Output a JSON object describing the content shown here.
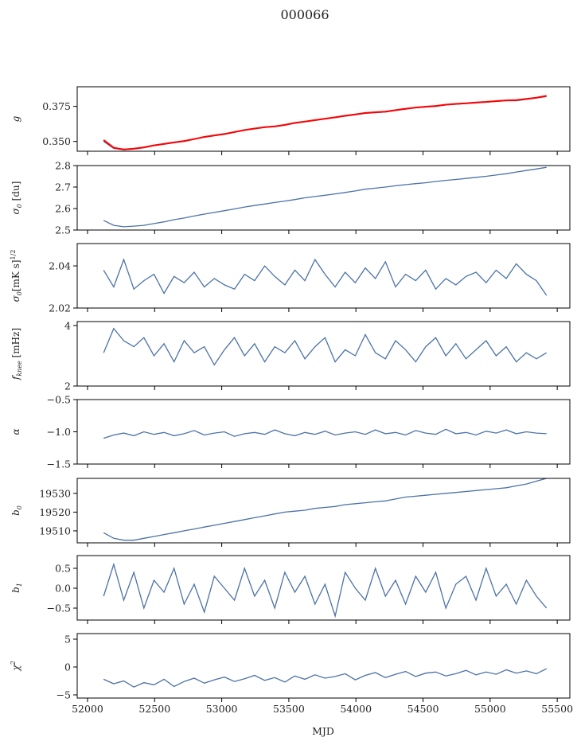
{
  "chart_data": {
    "type": "line",
    "title": "000066",
    "xlabel": "MJD",
    "xlim": [
      51923,
      55594
    ],
    "xticks": [
      52000,
      52500,
      53000,
      53500,
      54000,
      54500,
      55000,
      55500
    ],
    "x": [
      52120,
      52195,
      52270,
      52345,
      52420,
      52495,
      52570,
      52645,
      52720,
      52795,
      52870,
      52945,
      53020,
      53095,
      53170,
      53245,
      53320,
      53395,
      53470,
      53545,
      53620,
      53695,
      53770,
      53845,
      53920,
      53995,
      54070,
      54145,
      54220,
      54295,
      54370,
      54445,
      54520,
      54595,
      54670,
      54745,
      54820,
      54895,
      54970,
      55045,
      55120,
      55195,
      55270,
      55345,
      55420
    ],
    "line_color": "#4c72a6",
    "overlay_color": "#ff0000",
    "panels": [
      {
        "name": "g",
        "ylabel": {
          "main": "g",
          "sub": "",
          "sup": "",
          "rest": ""
        },
        "ylim": [
          0.343,
          0.389
        ],
        "yticks": [
          0.35,
          0.375
        ],
        "ytick_labels": [
          "0.350",
          "0.375"
        ],
        "values": [
          0.35,
          0.345,
          0.344,
          0.3445,
          0.3455,
          0.347,
          0.348,
          0.349,
          0.35,
          0.3515,
          0.353,
          0.354,
          0.355,
          0.3565,
          0.358,
          0.359,
          0.36,
          0.3605,
          0.3615,
          0.363,
          0.364,
          0.365,
          0.366,
          0.367,
          0.368,
          0.369,
          0.37,
          0.3705,
          0.371,
          0.372,
          0.373,
          0.374,
          0.3745,
          0.375,
          0.376,
          0.3765,
          0.377,
          0.3775,
          0.378,
          0.3785,
          0.379,
          0.379,
          0.38,
          0.381,
          0.382
        ],
        "overlay": [
          0.351,
          0.3455,
          0.3443,
          0.3448,
          0.3458,
          0.3472,
          0.3483,
          0.3493,
          0.3503,
          0.3517,
          0.3532,
          0.3543,
          0.3553,
          0.3567,
          0.3581,
          0.3592,
          0.3602,
          0.3608,
          0.3618,
          0.3632,
          0.3642,
          0.3652,
          0.3662,
          0.3672,
          0.3683,
          0.3693,
          0.3703,
          0.3708,
          0.3713,
          0.3723,
          0.3733,
          0.3742,
          0.3748,
          0.3753,
          0.3762,
          0.3768,
          0.3772,
          0.3778,
          0.3782,
          0.3788,
          0.3793,
          0.3795,
          0.3803,
          0.3812,
          0.3825
        ]
      },
      {
        "name": "sigma0-du",
        "ylabel": {
          "main": "σ",
          "sub": "0",
          "sup": "",
          "rest": " [du]"
        },
        "ylim": [
          2.5,
          2.8
        ],
        "yticks": [
          2.5,
          2.6,
          2.7,
          2.8
        ],
        "ytick_labels": [
          "2.5",
          "2.6",
          "2.7",
          "2.8"
        ],
        "values": [
          2.545,
          2.522,
          2.515,
          2.518,
          2.522,
          2.53,
          2.538,
          2.548,
          2.556,
          2.565,
          2.574,
          2.582,
          2.59,
          2.598,
          2.607,
          2.614,
          2.621,
          2.628,
          2.635,
          2.642,
          2.65,
          2.656,
          2.662,
          2.668,
          2.675,
          2.682,
          2.69,
          2.695,
          2.7,
          2.706,
          2.711,
          2.716,
          2.72,
          2.726,
          2.731,
          2.735,
          2.74,
          2.745,
          2.75,
          2.756,
          2.762,
          2.77,
          2.777,
          2.784,
          2.792
        ]
      },
      {
        "name": "sigma0-white",
        "ylabel": {
          "main": "σ",
          "sub": "0",
          "sup": "1/2",
          "rest": "[mK s]"
        },
        "ylim": [
          2.02,
          2.0506
        ],
        "yticks": [
          2.02,
          2.04
        ],
        "ytick_labels": [
          "2.02",
          "2.04"
        ],
        "values": [
          2.038,
          2.03,
          2.043,
          2.029,
          2.033,
          2.036,
          2.027,
          2.035,
          2.032,
          2.037,
          2.03,
          2.034,
          2.031,
          2.029,
          2.036,
          2.033,
          2.04,
          2.035,
          2.031,
          2.038,
          2.033,
          2.043,
          2.036,
          2.03,
          2.037,
          2.032,
          2.039,
          2.034,
          2.042,
          2.03,
          2.036,
          2.033,
          2.038,
          2.029,
          2.034,
          2.031,
          2.035,
          2.037,
          2.032,
          2.038,
          2.034,
          2.041,
          2.036,
          2.033,
          2.026
        ]
      },
      {
        "name": "fknee",
        "ylabel": {
          "main": "f",
          "sub": "knee",
          "sup": "",
          "rest": " [mHz]"
        },
        "ylim": [
          2,
          4.13
        ],
        "yticks": [
          2,
          4
        ],
        "ytick_labels": [
          "2",
          "4"
        ],
        "values": [
          3.1,
          3.9,
          3.5,
          3.3,
          3.6,
          3.0,
          3.4,
          2.8,
          3.5,
          3.1,
          3.3,
          2.7,
          3.2,
          3.6,
          3.0,
          3.4,
          2.8,
          3.3,
          3.1,
          3.5,
          2.9,
          3.3,
          3.6,
          2.8,
          3.2,
          3.0,
          3.7,
          3.1,
          2.9,
          3.5,
          3.2,
          2.8,
          3.3,
          3.6,
          3.0,
          3.4,
          2.9,
          3.2,
          3.5,
          3.0,
          3.3,
          2.8,
          3.1,
          2.9,
          3.1
        ]
      },
      {
        "name": "alpha",
        "ylabel": {
          "main": "α",
          "sub": "",
          "sup": "",
          "rest": ""
        },
        "ylim": [
          -1.5,
          -0.5
        ],
        "yticks": [
          -1.5,
          -1.0,
          -0.5
        ],
        "ytick_labels": [
          "−1.5",
          "−1.0",
          "−0.5"
        ],
        "values": [
          -1.1,
          -1.05,
          -1.02,
          -1.06,
          -1.0,
          -1.04,
          -1.01,
          -1.06,
          -1.03,
          -0.98,
          -1.05,
          -1.02,
          -1.0,
          -1.07,
          -1.03,
          -1.01,
          -1.04,
          -0.97,
          -1.03,
          -1.06,
          -1.01,
          -1.04,
          -0.99,
          -1.05,
          -1.02,
          -1.0,
          -1.04,
          -0.97,
          -1.03,
          -1.01,
          -1.05,
          -0.98,
          -1.02,
          -1.04,
          -0.96,
          -1.03,
          -1.01,
          -1.05,
          -0.99,
          -1.02,
          -0.97,
          -1.03,
          -1.0,
          -1.02,
          -1.03
        ]
      },
      {
        "name": "b0",
        "ylabel": {
          "main": "b",
          "sub": "0",
          "sup": "",
          "rest": ""
        },
        "ylim": [
          19503.6,
          19538
        ],
        "yticks": [
          19510,
          19520,
          19530
        ],
        "ytick_labels": [
          "19510",
          "19520",
          "19530"
        ],
        "values": [
          19509,
          19506,
          19505,
          19505,
          19506,
          19507,
          19508,
          19509,
          19510,
          19511,
          19512,
          19513,
          19514,
          19515,
          19516,
          19517,
          19518,
          19519,
          19520,
          19520.5,
          19521,
          19522,
          19522.5,
          19523,
          19524,
          19524.5,
          19525,
          19525.5,
          19526,
          19527,
          19528,
          19528.5,
          19529,
          19529.5,
          19530,
          19530.5,
          19531,
          19531.5,
          19532,
          19532.5,
          19533,
          19534,
          19535,
          19536.5,
          19538
        ]
      },
      {
        "name": "b1",
        "ylabel": {
          "main": "b",
          "sub": "1",
          "sup": "",
          "rest": ""
        },
        "ylim": [
          -0.8,
          0.82
        ],
        "yticks": [
          -0.5,
          0.0,
          0.5
        ],
        "ytick_labels": [
          "−0.5",
          "0.0",
          "0.5"
        ],
        "values": [
          -0.2,
          0.6,
          -0.3,
          0.4,
          -0.5,
          0.2,
          -0.1,
          0.5,
          -0.4,
          0.1,
          -0.6,
          0.3,
          0.0,
          -0.3,
          0.5,
          -0.2,
          0.2,
          -0.5,
          0.4,
          -0.1,
          0.3,
          -0.4,
          0.1,
          -0.7,
          0.4,
          0.0,
          -0.3,
          0.5,
          -0.2,
          0.2,
          -0.4,
          0.3,
          -0.1,
          0.4,
          -0.5,
          0.1,
          0.3,
          -0.3,
          0.5,
          -0.2,
          0.1,
          -0.4,
          0.2,
          -0.2,
          -0.5
        ]
      },
      {
        "name": "chi2",
        "ylabel": {
          "main": "χ",
          "sub": "",
          "sup": "2",
          "rest": ""
        },
        "ylim": [
          -5.57,
          6
        ],
        "yticks": [
          -5,
          0,
          5
        ],
        "ytick_labels": [
          "−5",
          "0",
          "5"
        ],
        "values": [
          -2.2,
          -3.0,
          -2.5,
          -3.6,
          -2.8,
          -3.2,
          -2.2,
          -3.5,
          -2.6,
          -2.0,
          -2.9,
          -2.3,
          -1.8,
          -2.6,
          -2.1,
          -1.5,
          -2.4,
          -1.9,
          -2.7,
          -1.6,
          -2.2,
          -1.4,
          -2.0,
          -1.7,
          -1.2,
          -2.3,
          -1.5,
          -1.0,
          -1.9,
          -1.3,
          -0.8,
          -1.7,
          -1.1,
          -0.9,
          -1.6,
          -1.2,
          -0.6,
          -1.4,
          -0.9,
          -1.3,
          -0.5,
          -1.1,
          -0.7,
          -1.2,
          -0.3
        ]
      }
    ]
  }
}
